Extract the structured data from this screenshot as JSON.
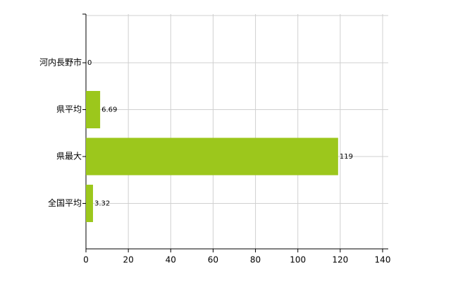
{
  "chart_data": {
    "type": "hbar",
    "categories": [
      "河内長野市",
      "県平均",
      "県最大",
      "全国平均"
    ],
    "values": [
      0,
      6.69,
      119,
      3.32
    ],
    "color": "#9cc71c",
    "xlim": [
      0,
      140
    ],
    "xticks": [
      0,
      20,
      40,
      60,
      80,
      100,
      120,
      140
    ],
    "grid": true
  }
}
